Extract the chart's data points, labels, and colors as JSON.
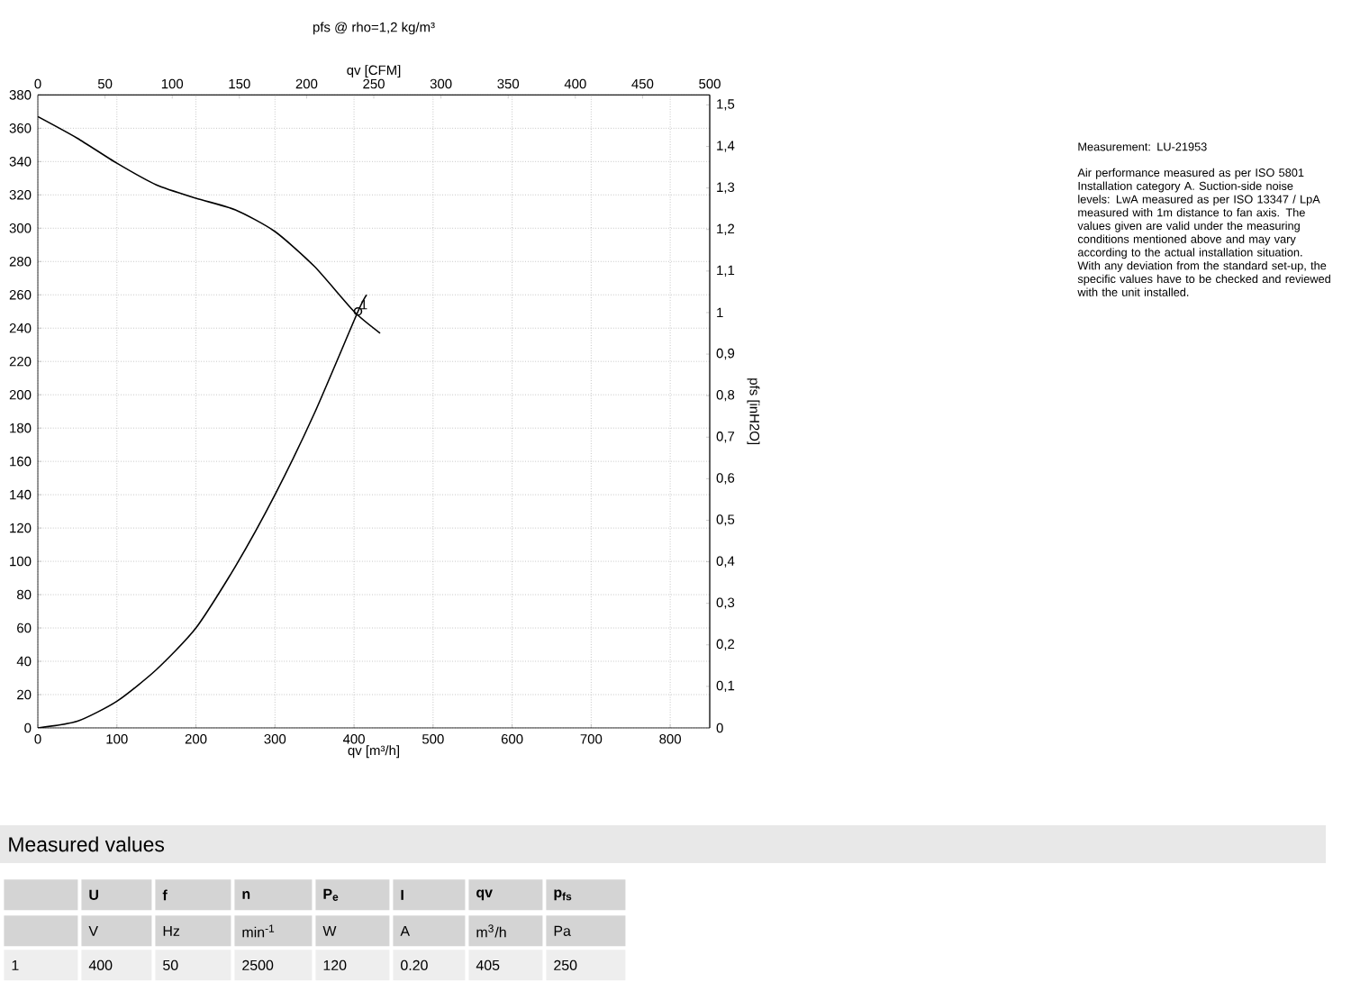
{
  "chart_data": {
    "type": "line",
    "title": "pfs @ rho=1,2 kg/m³",
    "xlabel": "qv [m³/h]",
    "x2label": "qv [CFM]",
    "y2label": "pfs [inH2O]",
    "xlim": [
      0,
      850
    ],
    "xticks": [
      0,
      100,
      200,
      300,
      400,
      500,
      600,
      700,
      800
    ],
    "ylim": [
      0,
      380
    ],
    "yticks": [
      0,
      20,
      40,
      60,
      80,
      100,
      120,
      140,
      160,
      180,
      200,
      220,
      240,
      260,
      280,
      300,
      320,
      340,
      360,
      380
    ],
    "x2lim": [
      0,
      500
    ],
    "x2ticks": [
      0,
      50,
      100,
      150,
      200,
      250,
      300,
      350,
      400,
      450,
      500
    ],
    "y2lim": [
      0,
      1.524
    ],
    "y2ticks": [
      0,
      {
        "value": 0.1,
        "label": "0,1"
      },
      {
        "value": 0.2,
        "label": "0,2"
      },
      {
        "value": 0.3,
        "label": "0,3"
      },
      {
        "value": 0.4,
        "label": "0,4"
      },
      {
        "value": 0.5,
        "label": "0,5"
      },
      {
        "value": 0.6,
        "label": "0,6"
      },
      {
        "value": 0.7,
        "label": "0,7"
      },
      {
        "value": 0.8,
        "label": "0,8"
      },
      {
        "value": 0.9,
        "label": "0,9"
      },
      1,
      {
        "value": 1.1,
        "label": "1,1"
      },
      {
        "value": 1.2,
        "label": "1,2"
      },
      {
        "value": 1.3,
        "label": "1,3"
      },
      {
        "value": 1.4,
        "label": "1,4"
      },
      {
        "value": 1.5,
        "label": "1,5"
      }
    ],
    "grid": true,
    "series": [
      {
        "color": "#000000",
        "x": [
          0,
          50,
          100,
          150,
          200,
          250,
          300,
          350,
          400,
          433
        ],
        "values": [
          367,
          354,
          339,
          326,
          318,
          311,
          298,
          277,
          250,
          237
        ]
      },
      {
        "color": "#000000",
        "x": [
          0,
          50,
          100,
          150,
          200,
          250,
          300,
          350,
          405,
          416
        ],
        "values": [
          0,
          4,
          16,
          35,
          60,
          97,
          140,
          189,
          250,
          260
        ]
      },
      {
        "type": "scatter",
        "marker": "circle",
        "color": "#000000",
        "x": [
          405
        ],
        "values": [
          250
        ]
      }
    ],
    "annotations": [
      "Measurement: LU-21953",
      "Air performance measured as per ISO 5801 Installation category A. Suction-side noise levels: LwA measured as per ISO 13347 / LpA measured with 1m distance to fan axis. The values given are valid under the measuring conditions mentioned above and may vary according to the actual installation situation. With any deviation from the standard set-up, the specific values have to be checked and reviewed with the unit installed.",
      "Measured values",
      "U",
      "f",
      "n",
      "P$_{e}$",
      "I",
      "qv",
      "p$_{fs}$",
      "V",
      "Hz",
      "min$^{-1}$",
      "W",
      "A",
      "m$^{3}$/h",
      "Pa",
      "1",
      "400",
      "50",
      "2500",
      "120",
      "0.20",
      "405",
      "250",
      {
        "text": "1",
        "x": 405,
        "y": 250
      }
    ]
  }
}
